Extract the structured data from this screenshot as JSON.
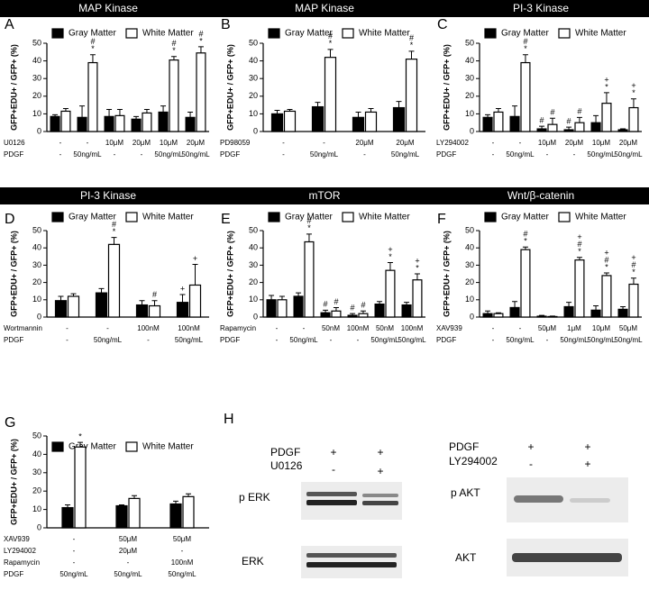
{
  "chart_data": [
    {
      "type": "bar",
      "panel": "A",
      "title": "MAP Kinase",
      "ylabel": "GFP+EDU+ / GFP+ (%)",
      "ylim": [
        0,
        50
      ],
      "yticks": [
        0,
        10,
        20,
        30,
        40,
        50
      ],
      "series": [
        {
          "name": "Gray Matter",
          "color": "#000000",
          "values": [
            8.5,
            8,
            8.5,
            7,
            11,
            8
          ],
          "errors": [
            1,
            6.5,
            4,
            1.5,
            3.5,
            3
          ],
          "annotations": [
            [],
            [],
            [],
            [],
            [],
            []
          ]
        },
        {
          "name": "White Matter",
          "color": "#ffffff",
          "values": [
            11.5,
            39,
            9,
            10.5,
            40.5,
            44.5
          ],
          "errors": [
            1.5,
            4.5,
            3.5,
            2,
            2,
            3.5
          ],
          "annotations": [
            [],
            [
              "#",
              "*"
            ],
            [],
            [],
            [
              "#",
              "*"
            ],
            [
              "#",
              "*"
            ]
          ]
        }
      ],
      "conditions": [
        {
          "label": "U0126",
          "values": [
            "-",
            "-",
            "10μM",
            "20μM",
            "10μM",
            "20μM"
          ]
        },
        {
          "label": "PDGF",
          "values": [
            "-",
            "50ng/mL",
            "-",
            "-",
            "50ng/mL",
            "50ng/mL"
          ]
        }
      ]
    },
    {
      "type": "bar",
      "panel": "B",
      "title": "MAP Kinase",
      "ylabel": "GFP+EDU+ / GFP+ (%)",
      "ylim": [
        0,
        50
      ],
      "yticks": [
        0,
        10,
        20,
        30,
        40,
        50
      ],
      "series": [
        {
          "name": "Gray Matter",
          "color": "#000000",
          "values": [
            10,
            14,
            8,
            13.5
          ],
          "errors": [
            2,
            2.5,
            3,
            3.5
          ],
          "annotations": [
            [],
            [],
            [],
            []
          ]
        },
        {
          "name": "White Matter",
          "color": "#ffffff",
          "values": [
            11.5,
            42,
            11,
            41
          ],
          "errors": [
            1,
            4.5,
            2,
            4.5
          ],
          "annotations": [
            [],
            [
              "#",
              "*"
            ],
            [],
            [
              "#",
              "*"
            ]
          ]
        }
      ],
      "conditions": [
        {
          "label": "PD98059",
          "values": [
            "-",
            "-",
            "20μM",
            "20μM"
          ]
        },
        {
          "label": "PDGF",
          "values": [
            "-",
            "50ng/mL",
            "-",
            "50ng/mL"
          ]
        }
      ]
    },
    {
      "type": "bar",
      "panel": "C",
      "title": "PI-3 Kinase",
      "ylabel": "GFP+EDU+ / GFP+ (%)",
      "ylim": [
        0,
        50
      ],
      "yticks": [
        0,
        10,
        20,
        30,
        40,
        50
      ],
      "series": [
        {
          "name": "Gray Matter",
          "color": "#000000",
          "values": [
            8,
            8.5,
            1.5,
            1,
            5,
            1
          ],
          "errors": [
            1.5,
            6,
            1.5,
            1.5,
            4,
            0.5
          ],
          "annotations": [
            [],
            [],
            [
              "#"
            ],
            [
              "#"
            ],
            [],
            []
          ]
        },
        {
          "name": "White Matter",
          "color": "#ffffff",
          "values": [
            11,
            39,
            4,
            5,
            16,
            13.5
          ],
          "errors": [
            2,
            4.5,
            3.5,
            3,
            6,
            5
          ],
          "annotations": [
            [],
            [
              "#",
              "*"
            ],
            [
              "#"
            ],
            [
              "#"
            ],
            [
              "+",
              "*"
            ],
            [
              "+",
              "*"
            ]
          ]
        }
      ],
      "conditions": [
        {
          "label": "LY294002",
          "values": [
            "-",
            "-",
            "10μM",
            "20μM",
            "10μM",
            "20μM"
          ]
        },
        {
          "label": "PDGF",
          "values": [
            "-",
            "50ng/mL",
            "-",
            "-",
            "50ng/mL",
            "50ng/mL"
          ]
        }
      ]
    },
    {
      "type": "bar",
      "panel": "D",
      "title": "PI-3 Kinase",
      "ylabel": "GFP+EDU+ / GFP+ (%)",
      "ylim": [
        0,
        50
      ],
      "yticks": [
        0,
        10,
        20,
        30,
        40,
        50
      ],
      "series": [
        {
          "name": "Gray Matter",
          "color": "#000000",
          "values": [
            9.5,
            14,
            7,
            8.5
          ],
          "errors": [
            2.5,
            2.5,
            2.5,
            4.5
          ],
          "annotations": [
            [],
            [],
            [],
            [
              "+"
            ]
          ]
        },
        {
          "name": "White Matter",
          "color": "#ffffff",
          "values": [
            12,
            42,
            6.5,
            18.5
          ],
          "errors": [
            1.5,
            4,
            3,
            12
          ],
          "annotations": [
            [],
            [
              "#",
              "*"
            ],
            [
              "#"
            ],
            [
              "+"
            ]
          ]
        }
      ],
      "conditions": [
        {
          "label": "Wortmannin",
          "values": [
            "-",
            "-",
            "100nM",
            "100nM"
          ]
        },
        {
          "label": "PDGF",
          "values": [
            "-",
            "50ng/mL",
            "-",
            "50ng/mL"
          ]
        }
      ]
    },
    {
      "type": "bar",
      "panel": "E",
      "title": "mTOR",
      "ylabel": "GFP+EDU+ / GFP+ (%)",
      "ylim": [
        0,
        50
      ],
      "yticks": [
        0,
        10,
        20,
        30,
        40,
        50
      ],
      "series": [
        {
          "name": "Gray Matter",
          "color": "#000000",
          "values": [
            10,
            12,
            2.5,
            1,
            7.5,
            7
          ],
          "errors": [
            2.5,
            2,
            1.5,
            1,
            1.5,
            1.5
          ],
          "annotations": [
            [],
            [],
            [
              "#"
            ],
            [
              "#"
            ],
            [],
            []
          ]
        },
        {
          "name": "White Matter",
          "color": "#ffffff",
          "values": [
            10,
            43.5,
            3.5,
            2,
            27,
            21.5
          ],
          "errors": [
            2,
            4.5,
            2,
            1.5,
            4.5,
            3.5
          ],
          "annotations": [
            [],
            [
              "#",
              "*"
            ],
            [
              "#"
            ],
            [
              "#"
            ],
            [
              "+",
              "*"
            ],
            [
              "+",
              "*"
            ]
          ]
        }
      ],
      "conditions": [
        {
          "label": "Rapamycin",
          "values": [
            "-",
            "-",
            "50nM",
            "100nM",
            "50nM",
            "100nM"
          ]
        },
        {
          "label": "PDGF",
          "values": [
            "-",
            "50ng/mL",
            "-",
            "-",
            "50ng/mL",
            "50ng/mL"
          ]
        }
      ]
    },
    {
      "type": "bar",
      "panel": "F",
      "title": "Wnt/β-catenin",
      "ylabel": "GFP+EDU+ / GFP+ (%)",
      "ylim": [
        0,
        50
      ],
      "yticks": [
        0,
        10,
        20,
        30,
        40,
        50
      ],
      "series": [
        {
          "name": "Gray Matter",
          "color": "#000000",
          "values": [
            2,
            5.5,
            0.5,
            6,
            4,
            4.5
          ],
          "errors": [
            1.5,
            3.5,
            0.5,
            2.5,
            2.5,
            1.5
          ],
          "annotations": [
            [],
            [],
            [],
            [],
            [],
            []
          ]
        },
        {
          "name": "White Matter",
          "color": "#ffffff",
          "values": [
            2,
            39,
            0.3,
            33,
            24,
            19
          ],
          "errors": [
            0.5,
            1.5,
            0.3,
            1.5,
            1.5,
            3.5
          ],
          "annotations": [
            [],
            [
              "#",
              "*"
            ],
            [],
            [
              "+",
              "#",
              "*"
            ],
            [
              "+",
              "#",
              "*"
            ],
            [
              "+",
              "#",
              "*"
            ]
          ]
        }
      ],
      "conditions": [
        {
          "label": "XAV939",
          "values": [
            "-",
            "-",
            "50μM",
            "1μM",
            "10μM",
            "50μM"
          ]
        },
        {
          "label": "PDGF",
          "values": [
            "-",
            "50ng/mL",
            "-",
            "50ng/mL",
            "50ng/mL",
            "50ng/mL"
          ]
        }
      ]
    },
    {
      "type": "bar",
      "panel": "G",
      "ylabel": "GFP+EDU+ / GFP+ (%)",
      "ylim": [
        0,
        50
      ],
      "yticks": [
        0,
        10,
        20,
        30,
        40,
        50
      ],
      "series": [
        {
          "name": "Gray Matter",
          "color": "#000000",
          "values": [
            11,
            12,
            13
          ],
          "errors": [
            1.5,
            0.5,
            1.5
          ],
          "annotations": [
            [],
            [],
            []
          ]
        },
        {
          "name": "White Matter",
          "color": "#ffffff",
          "values": [
            44,
            16,
            17
          ],
          "errors": [
            2.5,
            1.5,
            1.5
          ],
          "annotations": [
            [
              "*"
            ],
            [],
            []
          ]
        }
      ],
      "conditions": [
        {
          "label": "XAV939",
          "values": [
            "-",
            "50μM",
            "50μM"
          ]
        },
        {
          "label": "LY294002",
          "values": [
            "-",
            "20μM",
            "-"
          ]
        },
        {
          "label": "Rapamycin",
          "values": [
            "-",
            "-",
            "100nM"
          ]
        },
        {
          "label": "PDGF",
          "values": [
            "50ng/mL",
            "50ng/mL",
            "50ng/mL"
          ]
        }
      ]
    }
  ],
  "blot": {
    "panel": "H",
    "left": {
      "treatments": [
        {
          "label": "PDGF",
          "values": [
            "+",
            "+"
          ]
        },
        {
          "label": "U0126",
          "values": [
            "-",
            "+"
          ]
        }
      ],
      "bands": [
        "p ERK",
        "ERK"
      ]
    },
    "right": {
      "treatments": [
        {
          "label": "PDGF",
          "values": [
            "+",
            "+"
          ]
        },
        {
          "label": "LY294002",
          "values": [
            "-",
            "+"
          ]
        }
      ],
      "bands": [
        "p AKT",
        "AKT"
      ]
    }
  }
}
